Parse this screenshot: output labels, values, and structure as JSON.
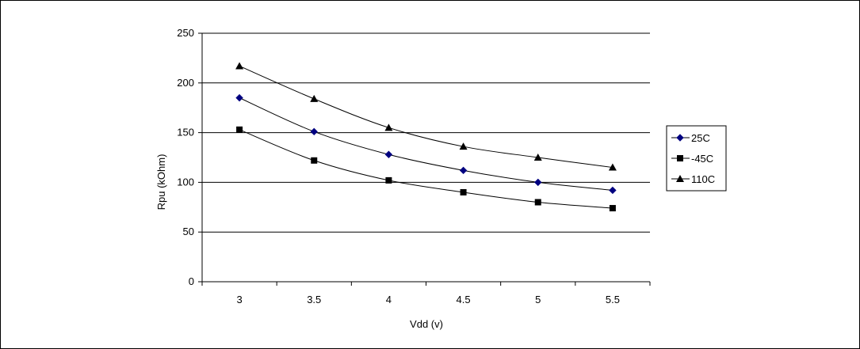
{
  "chart_data": {
    "type": "line",
    "title": "",
    "xlabel": "Vdd (v)",
    "ylabel": "Rpu (kOhm)",
    "categories": [
      "3",
      "3.5",
      "4",
      "4.5",
      "5",
      "5.5"
    ],
    "ylim": [
      0,
      250
    ],
    "yticks": [
      0,
      50,
      100,
      150,
      200,
      250
    ],
    "grid": true,
    "legend_position": "right",
    "series": [
      {
        "name": "25C",
        "marker": "diamond",
        "color": "#000080",
        "values": [
          185,
          151,
          128,
          112,
          100,
          92
        ]
      },
      {
        "name": "-45C",
        "marker": "square",
        "color": "#000000",
        "values": [
          153,
          122,
          102,
          90,
          80,
          74
        ]
      },
      {
        "name": "110C",
        "marker": "triangle",
        "color": "#000000",
        "values": [
          217,
          184,
          155,
          136,
          125,
          115
        ]
      }
    ]
  }
}
